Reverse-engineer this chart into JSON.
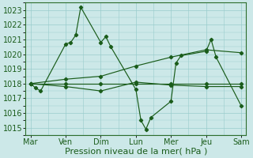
{
  "bg_color": "#cce8e8",
  "grid_color": "#99cccc",
  "line_color": "#1a5c1a",
  "xlabel": "Pression niveau de la mer( hPa )",
  "xlabel_fontsize": 8,
  "tick_fontsize": 7,
  "ylim": [
    1014.5,
    1023.5
  ],
  "yticks": [
    1015,
    1016,
    1017,
    1018,
    1019,
    1020,
    1021,
    1022,
    1023
  ],
  "day_labels": [
    "Mar",
    "Ven",
    "Dim",
    "Lun",
    "Mer",
    "Jeu",
    "Sam"
  ],
  "day_positions": [
    0,
    14,
    28,
    42,
    56,
    70,
    84
  ],
  "xlim": [
    -2,
    86
  ],
  "series1_x": [
    0,
    2,
    4,
    14,
    16,
    18,
    20,
    28,
    30,
    32,
    42,
    44,
    46,
    48,
    56,
    58,
    60,
    70,
    72,
    74,
    84
  ],
  "series1": [
    1018.0,
    1017.7,
    1017.5,
    1020.7,
    1020.8,
    1021.3,
    1023.2,
    1020.8,
    1021.2,
    1020.5,
    1017.6,
    1015.5,
    1014.9,
    1015.7,
    1016.8,
    1019.4,
    1019.9,
    1020.2,
    1021.0,
    1019.8,
    1016.5
  ],
  "series2_x": [
    0,
    14,
    28,
    42,
    56,
    70,
    84
  ],
  "series2": [
    1018.0,
    1018.3,
    1018.5,
    1019.2,
    1019.8,
    1020.3,
    1020.1
  ],
  "series3_x": [
    0,
    14,
    28,
    42,
    56,
    70,
    84
  ],
  "series3": [
    1018.0,
    1018.0,
    1018.0,
    1018.0,
    1018.0,
    1018.0,
    1018.0
  ],
  "series4_x": [
    0,
    14,
    28,
    42,
    56,
    70,
    84
  ],
  "series4": [
    1018.0,
    1017.8,
    1017.5,
    1018.1,
    1017.9,
    1017.8,
    1017.8
  ],
  "minor_xticks": [
    7,
    21,
    35,
    49,
    63,
    77
  ]
}
